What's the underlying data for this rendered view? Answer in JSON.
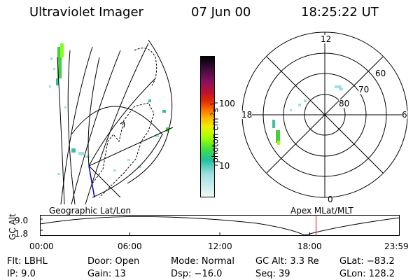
{
  "header": {
    "title": "Ultraviolet Imager",
    "date": "07 Jun 00",
    "time": "18:25:22 UT"
  },
  "colorbar": {
    "unit_prefix": "photon cm",
    "unit_exp1": "-2",
    "unit_s": "s",
    "unit_exp2": "-1",
    "tick_100": "100",
    "tick_10": "10",
    "colors": [
      "#000000",
      "#3a0a3a",
      "#8a1060",
      "#c01030",
      "#e03000",
      "#ff7000",
      "#ffb000",
      "#f0f000",
      "#a0ff00",
      "#40e040",
      "#20c0a0",
      "#a0e0e0",
      "#f0f8f8"
    ]
  },
  "polar": {
    "mlt_12": "12",
    "mlt_18": "18",
    "mlt_6": "6",
    "mlt_0": "0",
    "lat_60": "60",
    "lat_70": "70",
    "lat_80": "80"
  },
  "map_labels": {
    "left": "Geographic Lat/Lon",
    "right": "Apex MLat/MLT"
  },
  "altitude_plot": {
    "ylabel": "GC Alt",
    "ytick_top": "9.0",
    "ytick_bottom": "1.8",
    "xticks": [
      "00:00",
      "06:00",
      "12:00",
      "18:00",
      "23:59"
    ],
    "marker_time_hours": 18.42
  },
  "info": {
    "filter": "Flt: LBHL",
    "ip": "IP:  9.0",
    "door": "Door: Open",
    "gain": "Gain: 13",
    "mode": "Mode: Normal",
    "dsp": "Dsp:  −16.0",
    "gc_alt": "GC Alt: 3.3 Re",
    "seq": "Seq: 39",
    "glat": "GLat: −83.2",
    "glon": "GLon: 128.2"
  }
}
